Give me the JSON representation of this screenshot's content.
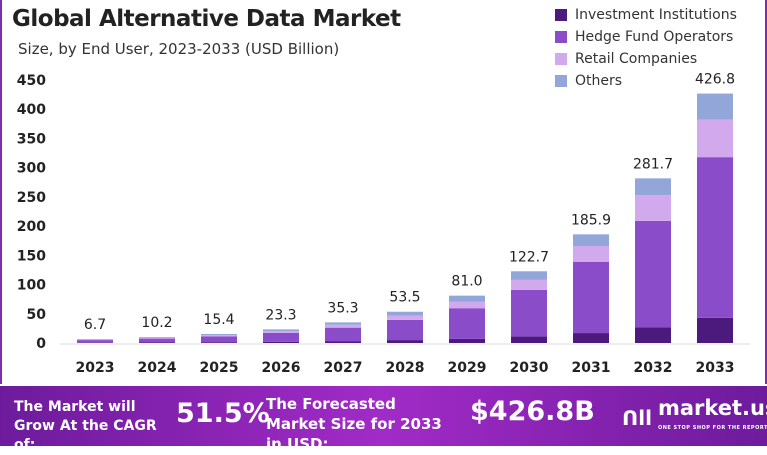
{
  "chart_data": {
    "type": "bar",
    "stacked": true,
    "title": "Global Alternative Data Market",
    "subtitle": "Size, by End User, 2023-2033 (USD Billion)",
    "categories": [
      "2023",
      "2024",
      "2025",
      "2026",
      "2027",
      "2028",
      "2029",
      "2030",
      "2031",
      "2032",
      "2033"
    ],
    "totals": [
      "6.7",
      "10.2",
      "15.4",
      "23.3",
      "35.3",
      "53.5",
      "81.0",
      "122.7",
      "185.9",
      "281.7",
      "426.8"
    ],
    "series": [
      {
        "name": "Investment Institutions",
        "color": "#4b1a7c",
        "values": [
          0.6,
          0.9,
          1.4,
          2.1,
          3.2,
          5,
          7,
          11,
          17,
          27,
          43
        ]
      },
      {
        "name": "Hedge Fund Operators",
        "color": "#8a4cc9",
        "values": [
          4.4,
          6.6,
          10,
          15.1,
          23,
          34.5,
          52.5,
          80,
          122,
          182,
          275
        ]
      },
      {
        "name": "Retail Companies",
        "color": "#d3a9ee",
        "values": [
          0.9,
          1.5,
          2.2,
          3.3,
          5,
          7.5,
          11.5,
          17,
          27,
          44,
          64
        ]
      },
      {
        "name": "Others",
        "color": "#92a6d9",
        "values": [
          0.8,
          1.2,
          1.8,
          2.8,
          4.1,
          6.5,
          10,
          14.7,
          19.9,
          28.7,
          44.8
        ]
      }
    ],
    "yticks": [
      0,
      50,
      100,
      150,
      200,
      250,
      300,
      350,
      400,
      450
    ],
    "ylim": [
      0,
      450
    ],
    "grid": false,
    "legend": "top-right"
  },
  "banner": {
    "cagr_text": "The Market will Grow At the CAGR of:",
    "cagr_value": "51.5%",
    "forecast_text": "The Forecasted Market Size for 2033 in USD:",
    "forecast_value": "$426.8B",
    "logo_text": "market.us",
    "logo_tagline": "ONE STOP SHOP FOR THE REPORTS"
  }
}
